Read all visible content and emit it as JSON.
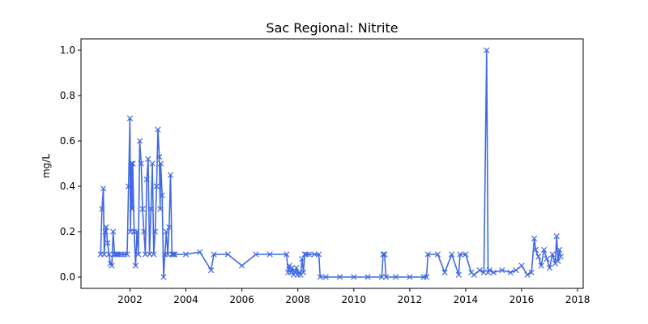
{
  "chart_data": {
    "type": "line",
    "title": "Sac Regional: Nitrite",
    "xlabel": "",
    "ylabel": "mg/L",
    "x_ticks": [
      "2002",
      "2004",
      "2006",
      "2008",
      "2010",
      "2012",
      "2014",
      "2016",
      "2018"
    ],
    "y_ticks": [
      "0.0",
      "0.2",
      "0.4",
      "0.6",
      "0.8",
      "1.0"
    ],
    "xlim": [
      2000.25,
      2018.2
    ],
    "ylim": [
      -0.05,
      1.05
    ],
    "grid": false,
    "marker": "x",
    "color": "#4169e1",
    "series": [
      {
        "x": [
          2000.95,
          2001.0,
          2001.05,
          2001.08,
          2001.12,
          2001.15,
          2001.2,
          2001.25,
          2001.3,
          2001.35,
          2001.4,
          2001.45,
          2001.5,
          2001.55,
          2001.6,
          2001.7,
          2001.8,
          2001.9,
          2001.95,
          2002.0,
          2002.02,
          2002.05,
          2002.08,
          2002.1,
          2002.15,
          2002.2,
          2002.25,
          2002.3,
          2002.35,
          2002.4,
          2002.45,
          2002.5,
          2002.55,
          2002.6,
          2002.65,
          2002.7,
          2002.75,
          2002.8,
          2002.85,
          2002.9,
          2002.95,
          2003.0,
          2003.05,
          2003.08,
          2003.1,
          2003.15,
          2003.2,
          2003.25,
          2003.3,
          2003.35,
          2003.4,
          2003.45,
          2003.5,
          2003.55,
          2003.6,
          2004.0,
          2004.5,
          2004.9,
          2005.0,
          2005.5,
          2006.0,
          2006.5,
          2007.0,
          2007.6,
          2007.65,
          2007.7,
          2007.75,
          2007.8,
          2007.85,
          2007.9,
          2007.95,
          2008.0,
          2008.05,
          2008.1,
          2008.15,
          2008.2,
          2008.25,
          2008.3,
          2008.4,
          2008.6,
          2008.75,
          2008.8,
          2009.0,
          2009.5,
          2010.0,
          2010.5,
          2011.0,
          2011.05,
          2011.1,
          2011.15,
          2011.5,
          2012.0,
          2012.5,
          2012.6,
          2012.65,
          2013.0,
          2013.25,
          2013.5,
          2013.75,
          2013.8,
          2014.0,
          2014.2,
          2014.3,
          2014.5,
          2014.65,
          2014.75,
          2014.8,
          2014.85,
          2015.0,
          2015.3,
          2015.6,
          2015.8,
          2016.0,
          2016.2,
          2016.35,
          2016.45,
          2016.5,
          2016.6,
          2016.7,
          2016.8,
          2016.9,
          2017.0,
          2017.1,
          2017.2,
          2017.25,
          2017.3,
          2017.35,
          2017.4
        ],
        "y": [
          0.1,
          0.3,
          0.39,
          0.1,
          0.2,
          0.22,
          0.15,
          0.1,
          0.06,
          0.05,
          0.2,
          0.1,
          0.1,
          0.1,
          0.1,
          0.1,
          0.1,
          0.1,
          0.4,
          0.7,
          0.2,
          0.5,
          0.3,
          0.5,
          0.2,
          0.05,
          0.2,
          0.1,
          0.6,
          0.5,
          0.3,
          0.2,
          0.1,
          0.43,
          0.52,
          0.1,
          0.3,
          0.5,
          0.1,
          0.2,
          0.4,
          0.65,
          0.53,
          0.3,
          0.5,
          0.36,
          0.0,
          0.1,
          0.2,
          0.1,
          0.22,
          0.45,
          0.1,
          0.1,
          0.1,
          0.1,
          0.11,
          0.03,
          0.1,
          0.1,
          0.05,
          0.1,
          0.1,
          0.1,
          0.02,
          0.05,
          0.02,
          0.04,
          0.01,
          0.02,
          0.04,
          0.01,
          0.02,
          0.01,
          0.08,
          0.02,
          0.1,
          0.1,
          0.1,
          0.1,
          0.1,
          0.0,
          0.0,
          0.0,
          0.0,
          0.0,
          0.0,
          0.1,
          0.1,
          0.0,
          0.0,
          0.0,
          0.0,
          0.0,
          0.1,
          0.1,
          0.02,
          0.1,
          0.01,
          0.1,
          0.1,
          0.02,
          0.01,
          0.03,
          0.02,
          1.0,
          0.02,
          0.03,
          0.02,
          0.03,
          0.02,
          0.03,
          0.05,
          0.01,
          0.02,
          0.17,
          0.12,
          0.09,
          0.05,
          0.12,
          0.08,
          0.04,
          0.1,
          0.06,
          0.18,
          0.07,
          0.12,
          0.09
        ]
      }
    ]
  }
}
